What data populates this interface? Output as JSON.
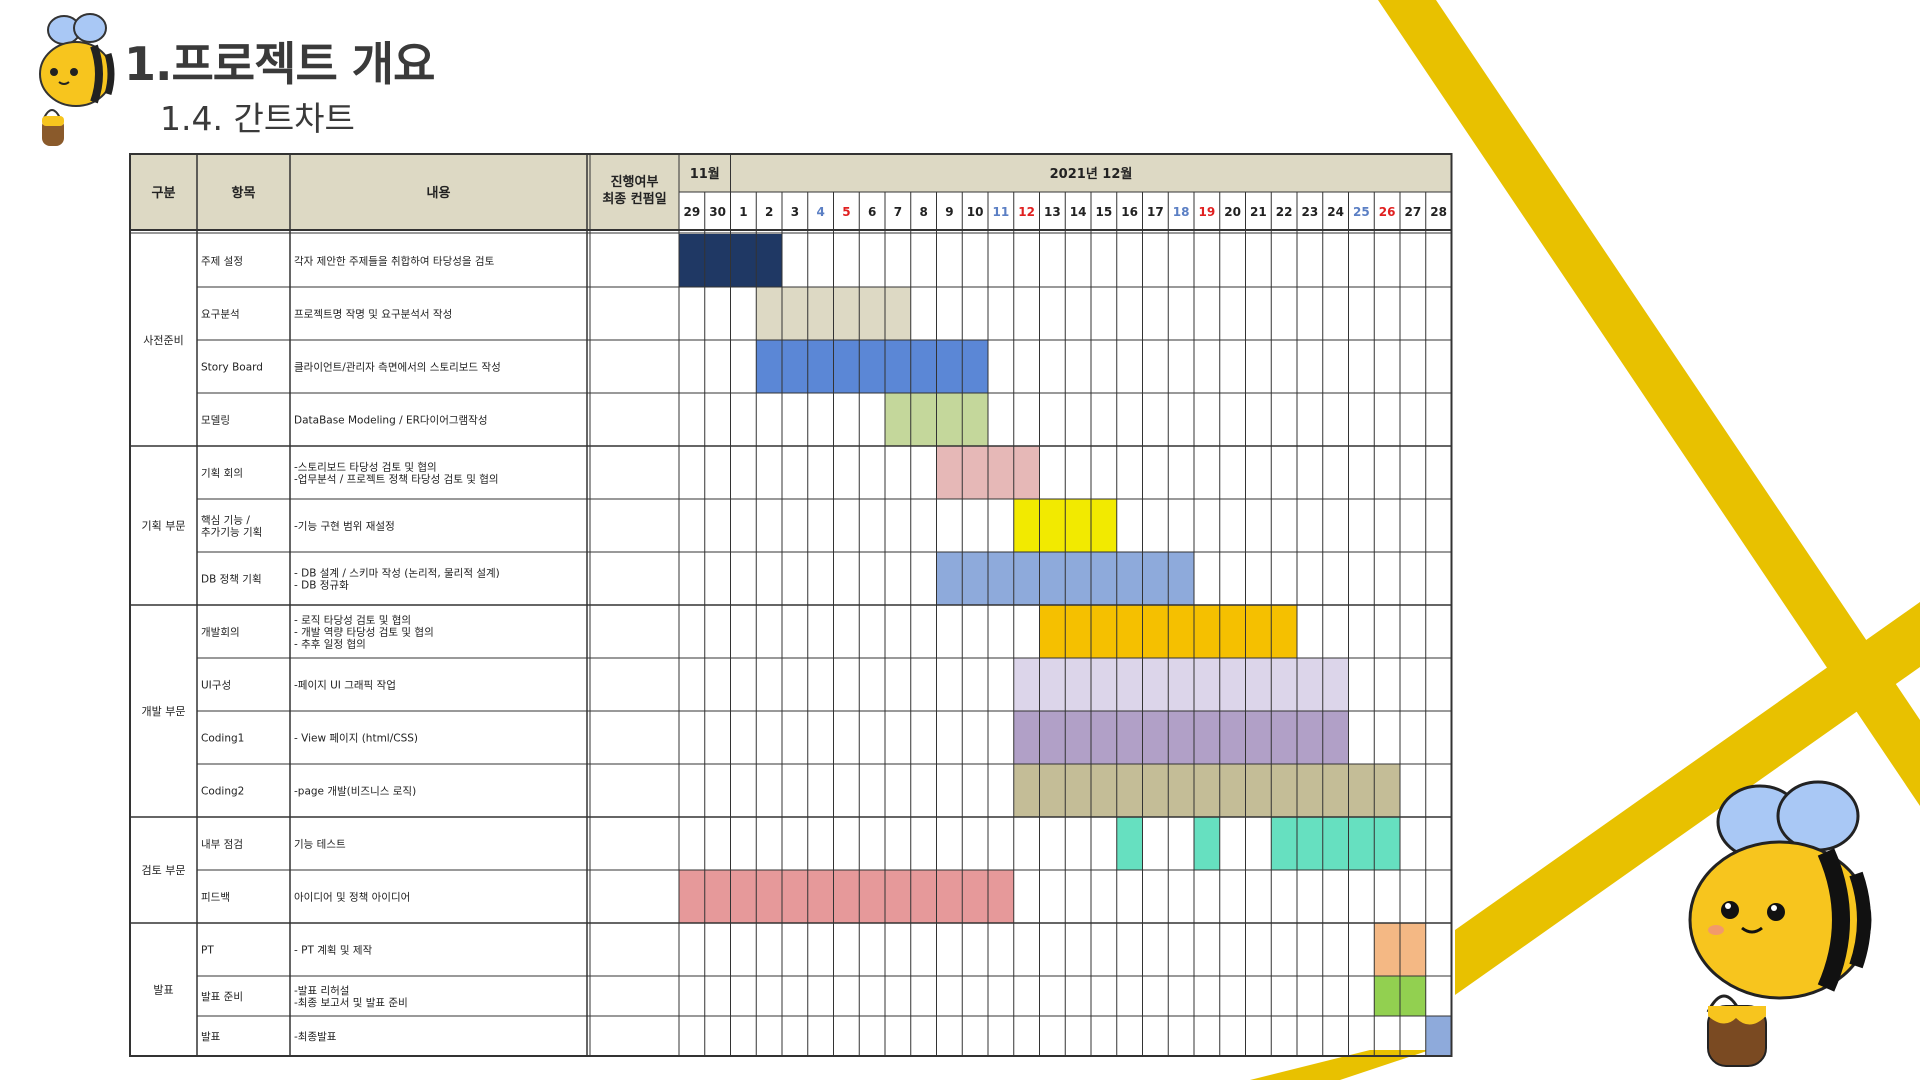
{
  "page": {
    "title": "1.프로젝트 개요",
    "subtitle": "1.4. 간트차트"
  },
  "colors": {
    "accent_yellow": "#e8c100",
    "header_bg": "#ddd9c4",
    "grid": "#333333"
  },
  "icons": [
    "bee-icon-top-left",
    "bee-icon-bottom-right",
    "honey-pot-icon"
  ],
  "chart_data": {
    "type": "table",
    "headers": {
      "category": "구분",
      "item": "항목",
      "content": "내용",
      "progress_line1": "진행여부",
      "progress_line2": "최종 컨펌일",
      "month_nov": "11월",
      "month_dec": "2021년 12월"
    },
    "days": [
      "29",
      "30",
      "1",
      "2",
      "3",
      "4",
      "5",
      "6",
      "7",
      "8",
      "9",
      "10",
      "11",
      "12",
      "13",
      "14",
      "15",
      "16",
      "17",
      "18",
      "19",
      "20",
      "21",
      "22",
      "23",
      "24",
      "25",
      "26",
      "27",
      "28"
    ],
    "day_colors": {
      "4": "#5b7fc4",
      "11": "#5b7fc4",
      "18": "#5b7fc4",
      "25": "#5b7fc4",
      "5": "#e02020",
      "12": "#e02020",
      "19": "#e02020",
      "26": "#e02020"
    },
    "groups": [
      {
        "name": "사전준비",
        "rows": 4
      },
      {
        "name": "기획 부문",
        "rows": 3
      },
      {
        "name": "개발 부문",
        "rows": 4
      },
      {
        "name": "검토 부문",
        "rows": 2
      },
      {
        "name": "발표",
        "rows": 3
      }
    ],
    "tasks": [
      {
        "item": [
          "주제 설정"
        ],
        "content": [
          "각자 제안한 주제들을 취합하여 타당성을 검토"
        ],
        "bars": [
          {
            "start": 0,
            "end": 3,
            "color": "#1f3864"
          }
        ]
      },
      {
        "item": [
          "요구분석"
        ],
        "content": [
          "프로젝트명 작명 및 요구분석서 작성"
        ],
        "bars": [
          {
            "start": 3,
            "end": 8,
            "color": "#ddd9c4"
          }
        ]
      },
      {
        "item": [
          "Story Board"
        ],
        "content": [
          "클라이언트/관리자 측면에서의 스토리보드 작성"
        ],
        "bars": [
          {
            "start": 3,
            "end": 11,
            "color": "#5b87d6"
          }
        ]
      },
      {
        "item": [
          "모델링"
        ],
        "content": [
          "DataBase Modeling / ER다이어그램작성"
        ],
        "bars": [
          {
            "start": 8,
            "end": 11,
            "color": "#c4d79b"
          }
        ]
      },
      {
        "item": [
          "기획 회의"
        ],
        "content": [
          "-스토리보드 타당성 검토 및 협의",
          "-업무분석 / 프로젝트 정책 타당성 검토 및 협의"
        ],
        "bars": [
          {
            "start": 10,
            "end": 13,
            "color": "#e6b8b7"
          }
        ]
      },
      {
        "item": [
          "핵심 기능 /",
          "추가기능 기획"
        ],
        "content": [
          "-기능 구현 범위 재설정"
        ],
        "bars": [
          {
            "start": 13,
            "end": 16,
            "color": "#f2ea00"
          }
        ]
      },
      {
        "item": [
          "DB 정책 기획"
        ],
        "content": [
          "- DB 설계 / 스키마 작성 (논리적, 물리적 설계)",
          "- DB 정규화"
        ],
        "bars": [
          {
            "start": 10,
            "end": 19,
            "color": "#8eaadb"
          }
        ]
      },
      {
        "item": [
          "개발회의"
        ],
        "content": [
          "- 로직 타당성 검토 및 협의",
          "- 개발 역량 타당성 검토 및 협의",
          "- 추후 일정 협의"
        ],
        "bars": [
          {
            "start": 14,
            "end": 23,
            "color": "#f5c000"
          }
        ]
      },
      {
        "item": [
          "UI구성"
        ],
        "content": [
          "-페이지 UI 그래픽 작업"
        ],
        "bars": [
          {
            "start": 13,
            "end": 25,
            "color": "#dcd5ea"
          }
        ]
      },
      {
        "item": [
          "Coding1"
        ],
        "content": [
          "- View 페이지 (html/CSS)"
        ],
        "bars": [
          {
            "start": 13,
            "end": 25,
            "color": "#b1a0c7"
          }
        ]
      },
      {
        "item": [
          "Coding2"
        ],
        "content": [
          "-page 개발(비즈니스 로직)"
        ],
        "bars": [
          {
            "start": 13,
            "end": 27,
            "color": "#c4bd97"
          }
        ]
      },
      {
        "item": [
          "내부 점검"
        ],
        "content": [
          "기능 테스트"
        ],
        "bars": [
          {
            "start": 17,
            "end": 17,
            "color": "#66e0c0"
          },
          {
            "start": 20,
            "end": 20,
            "color": "#66e0c0"
          },
          {
            "start": 23,
            "end": 27,
            "color": "#66e0c0"
          }
        ]
      },
      {
        "item": [
          "피드백"
        ],
        "content": [
          "아이디어 및 정책 아이디어"
        ],
        "bars": [
          {
            "start": 0,
            "end": 12,
            "color": "#e6999a"
          }
        ]
      },
      {
        "item": [
          "PT"
        ],
        "content": [
          "- PT 계획 및 제작"
        ],
        "bars": [
          {
            "start": 27,
            "end": 28,
            "color": "#f4b884"
          }
        ]
      },
      {
        "item": [
          "발표 준비"
        ],
        "content": [
          "-발표 리허설",
          "-최종 보고서 및 발표 준비"
        ],
        "bars": [
          {
            "start": 27,
            "end": 28,
            "color": "#92d050"
          }
        ]
      },
      {
        "item": [
          "발표"
        ],
        "content": [
          "-최종발표"
        ],
        "bars": [
          {
            "start": 29,
            "end": 29,
            "color": "#8eaadb"
          }
        ]
      }
    ]
  }
}
